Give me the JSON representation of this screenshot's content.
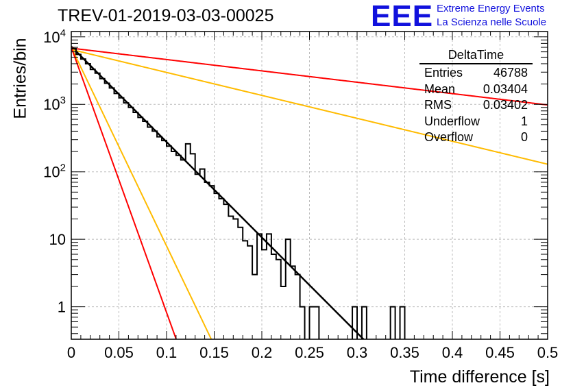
{
  "title": "TREV-01-2019-03-03-00025",
  "logo": {
    "mark": "EEE",
    "line1": "Extreme Energy Events",
    "line2": "La Scienza nelle Scuole",
    "color": "#1111dd"
  },
  "stats_box": {
    "name": "DeltaTime",
    "rows": [
      {
        "label": "Entries",
        "value": "46788"
      },
      {
        "label": "Mean",
        "value": "0.03404"
      },
      {
        "label": "RMS",
        "value": "0.03402"
      },
      {
        "label": "Underflow",
        "value": "1"
      },
      {
        "label": "Overflow",
        "value": "0"
      }
    ]
  },
  "chart_data": {
    "type": "line",
    "title": "TREV-01-2019-03-03-00025",
    "xlabel": "Time difference [s]",
    "ylabel": "Entries/bin",
    "xlim": [
      0,
      0.5
    ],
    "ylim": [
      0.33,
      12000
    ],
    "yscale": "log",
    "grid": true,
    "x_ticks": [
      "0",
      "0.05",
      "0.1",
      "0.15",
      "0.2",
      "0.25",
      "0.3",
      "0.35",
      "0.4",
      "0.45",
      "0.5"
    ],
    "y_ticks": [
      {
        "value": 1,
        "label": "1"
      },
      {
        "value": 10,
        "label": "10"
      },
      {
        "value": 100,
        "label": "10^2"
      },
      {
        "value": 1000,
        "label": "10^3"
      },
      {
        "value": 10000,
        "label": "10^4"
      }
    ],
    "histogram": {
      "bin_width": 0.005,
      "x_start": 0,
      "color": "#000000",
      "counts": [
        6700,
        5500,
        4700,
        4000,
        3300,
        2900,
        2400,
        2050,
        1750,
        1450,
        1250,
        1050,
        900,
        760,
        640,
        560,
        460,
        400,
        330,
        290,
        240,
        200,
        175,
        150,
        260,
        185,
        92,
        110,
        70,
        62,
        48,
        40,
        33,
        22,
        20,
        15,
        9.5,
        8,
        3,
        12,
        7,
        12,
        6,
        5,
        2,
        10,
        4,
        3,
        1,
        0,
        1,
        1,
        0,
        0,
        0,
        0,
        0,
        0,
        0,
        1,
        0,
        1,
        0,
        0,
        0,
        0,
        0,
        1,
        0,
        1,
        0
      ]
    },
    "series": [
      {
        "color": "#000000",
        "type": "exponential",
        "A": 7200,
        "tau": 0.0307,
        "x_range": [
          0,
          0.34
        ]
      },
      {
        "color": "#ff0000",
        "type": "exponential",
        "A": 6800,
        "tau": 0.258,
        "x_range": [
          0,
          0.5
        ]
      },
      {
        "color": "#ffbb00",
        "type": "exponential",
        "A": 6500,
        "tau": 0.1277,
        "x_range": [
          0,
          0.5
        ]
      },
      {
        "color": "#ffbb00",
        "type": "exponential",
        "A": 7000,
        "tau": 0.01475,
        "x_range": [
          0,
          0.2
        ]
      },
      {
        "color": "#ff0000",
        "type": "exponential",
        "A": 7000,
        "tau": 0.01105,
        "x_range": [
          0,
          0.2
        ]
      }
    ]
  }
}
